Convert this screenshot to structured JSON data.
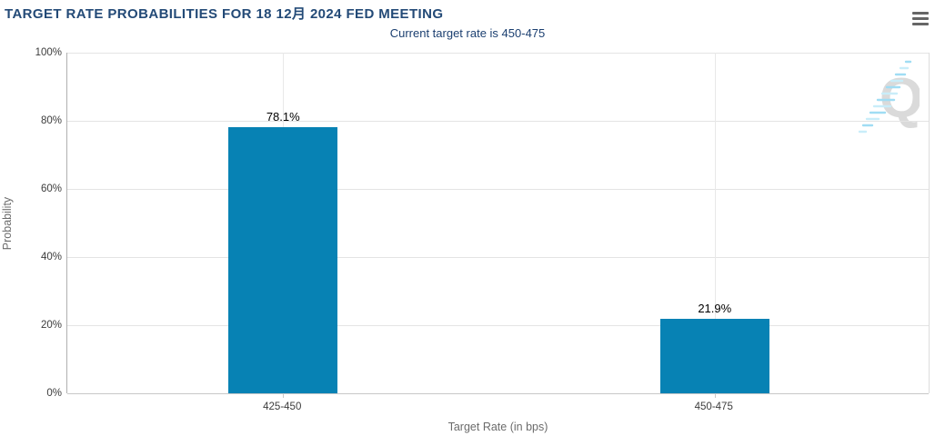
{
  "header": {
    "title": "TARGET RATE PROBABILITIES FOR 18 12月 2024 FED MEETING",
    "subtitle": "Current target rate is 450-475"
  },
  "menu": {
    "icon": "hamburger-icon"
  },
  "watermark": {
    "letter": "Q"
  },
  "colors": {
    "bar": "#0782b4",
    "title": "#234a77",
    "subtitle": "#1b3f70",
    "axis_label": "#6b6b6b",
    "tick_label": "#3c3c3c",
    "grid": "#e4e4e4",
    "watermark_gray": "#d9d9d9",
    "watermark_blue": "#9bdcf4"
  },
  "chart_data": {
    "type": "bar",
    "title": "TARGET RATE PROBABILITIES FOR 18 12月 2024 FED MEETING",
    "subtitle": "Current target rate is 450-475",
    "categories": [
      "425-450",
      "450-475"
    ],
    "values": [
      78.1,
      21.9
    ],
    "value_labels": [
      "78.1%",
      "21.9%"
    ],
    "xlabel": "Target Rate (in bps)",
    "ylabel": "Probability",
    "ylim": [
      0,
      100
    ],
    "ytick_step": 20,
    "ytick_labels": [
      "0%",
      "20%",
      "40%",
      "60%",
      "80%",
      "100%"
    ],
    "grid": true,
    "legend": "none",
    "bar_color": "#0782b4"
  }
}
